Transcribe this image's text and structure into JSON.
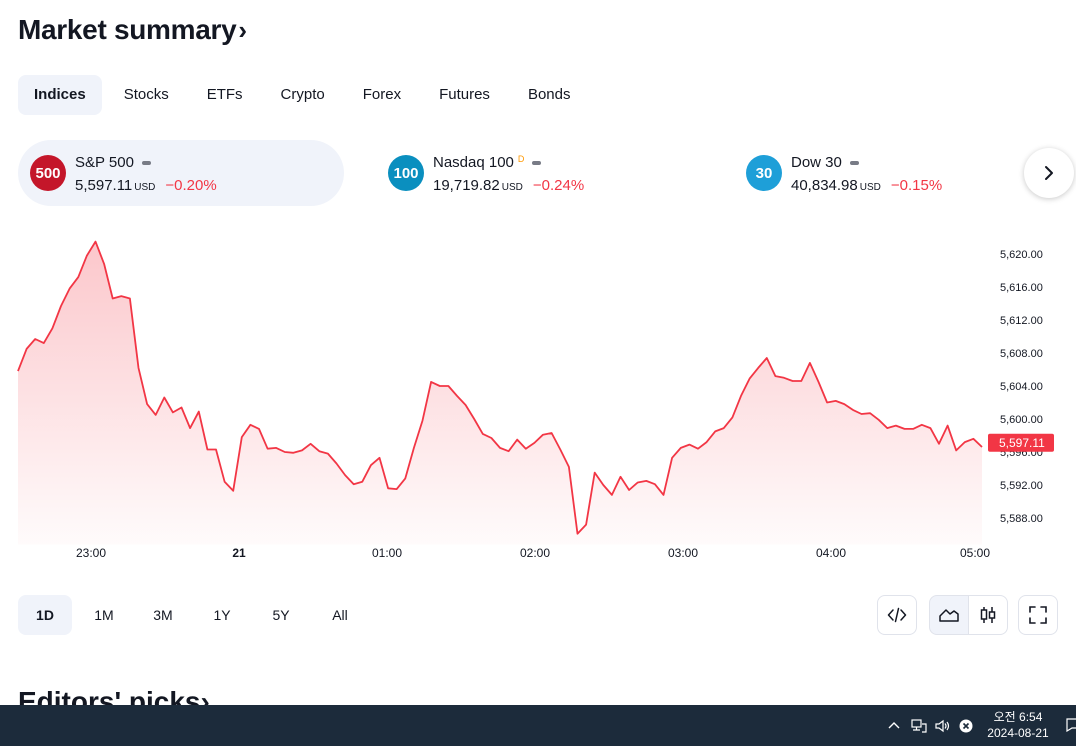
{
  "header": {
    "title": "Market summary",
    "chevron": "›"
  },
  "tabs": [
    {
      "label": "Indices",
      "active": true
    },
    {
      "label": "Stocks",
      "active": false
    },
    {
      "label": "ETFs",
      "active": false
    },
    {
      "label": "Crypto",
      "active": false
    },
    {
      "label": "Forex",
      "active": false
    },
    {
      "label": "Futures",
      "active": false
    },
    {
      "label": "Bonds",
      "active": false
    }
  ],
  "cards": [
    {
      "badge": "500",
      "badge_color": "#c4162a",
      "name": "S&P 500",
      "delayed_mark": "",
      "value": "5,597.11",
      "unit": "USD",
      "change": "−0.20%",
      "active": true
    },
    {
      "badge": "100",
      "badge_color": "#0a8fbf",
      "name": "Nasdaq 100",
      "delayed_mark": "D",
      "value": "19,719.82",
      "unit": "USD",
      "change": "−0.24%",
      "active": false
    },
    {
      "badge": "30",
      "badge_color": "#1e9fd8",
      "name": "Dow 30",
      "delayed_mark": "",
      "value": "40,834.98",
      "unit": "USD",
      "change": "−0.15%",
      "active": false
    }
  ],
  "next_icon": "chevron-right-icon",
  "chart_data": {
    "type": "area",
    "series": [
      {
        "values": [
          5605.8,
          5608.5,
          5609.7,
          5609.2,
          5611.0,
          5613.7,
          5615.8,
          5617.2,
          5619.8,
          5621.5,
          5618.8,
          5614.6,
          5614.9,
          5614.6,
          5606.2,
          5601.8,
          5600.5,
          5602.6,
          5600.8,
          5601.4,
          5598.9,
          5600.9,
          5596.3,
          5596.3,
          5592.4,
          5591.3,
          5597.8,
          5599.3,
          5598.8,
          5596.4,
          5596.5,
          5596.0,
          5595.9,
          5596.2,
          5597.0,
          5596.1,
          5595.8,
          5594.6,
          5593.2,
          5592.1,
          5592.4,
          5594.4,
          5595.3,
          5591.6,
          5591.5,
          5592.8,
          5596.5,
          5599.8,
          5604.5,
          5604.0,
          5604.0,
          5602.8,
          5601.7,
          5600.0,
          5598.2,
          5597.7,
          5596.5,
          5596.1,
          5597.5,
          5596.4,
          5597.1,
          5598.1,
          5598.3,
          5596.3,
          5594.2,
          5586.1,
          5587.2,
          5593.5,
          5592.0,
          5590.8,
          5593.0,
          5591.4,
          5592.3,
          5592.5,
          5592.1,
          5590.8,
          5595.3,
          5596.5,
          5596.9,
          5596.4,
          5597.2,
          5598.5,
          5598.9,
          5600.2,
          5602.8,
          5604.9,
          5606.2,
          5607.4,
          5605.2,
          5605.0,
          5604.6,
          5604.6,
          5606.8,
          5604.5,
          5602.0,
          5602.2,
          5601.8,
          5601.1,
          5600.6,
          5600.7,
          5599.9,
          5598.9,
          5599.2,
          5598.8,
          5598.8,
          5599.3,
          5598.9,
          5597.0,
          5599.2,
          5596.2,
          5597.2,
          5597.6,
          5596.6
        ]
      }
    ],
    "x_ticks": [
      "23:00",
      "21",
      "01:00",
      "02:00",
      "03:00",
      "04:00",
      "05:00"
    ],
    "y_ticks": [
      "5,620.00",
      "5,616.00",
      "5,612.00",
      "5,608.00",
      "5,604.00",
      "5,600.00",
      "5,596.00",
      "5,592.00",
      "5,588.00"
    ],
    "ylim": [
      5586,
      5622
    ],
    "last_price": "5,597.11",
    "line_color": "#f23645",
    "fill_color": "#f23645",
    "grid": false
  },
  "ranges": [
    {
      "label": "1D",
      "active": true
    },
    {
      "label": "1M",
      "active": false
    },
    {
      "label": "3M",
      "active": false
    },
    {
      "label": "1Y",
      "active": false
    },
    {
      "label": "5Y",
      "active": false
    },
    {
      "label": "All",
      "active": false
    }
  ],
  "tools": [
    "embed-code-icon",
    "area-chart-icon",
    "candles-icon",
    "fullscreen-icon"
  ],
  "editors": {
    "title": "Editors' picks",
    "chevron": "›"
  },
  "taskbar": {
    "time": "오전 6:54",
    "date": "2024-08-21"
  }
}
